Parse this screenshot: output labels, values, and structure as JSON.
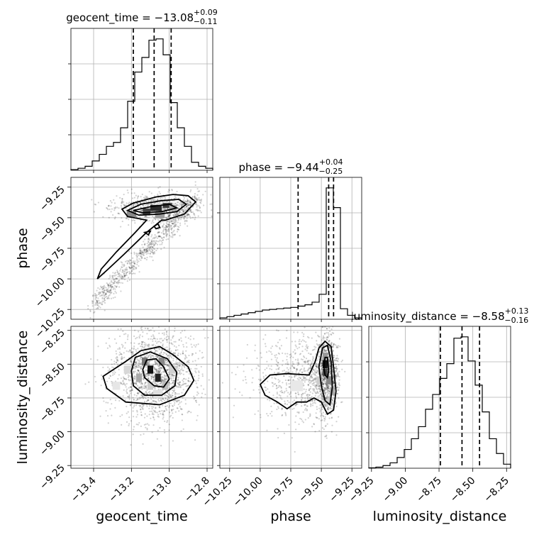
{
  "chart_data": {
    "type": "corner",
    "parameters": [
      "geocent_time",
      "phase",
      "luminosity_distance"
    ],
    "axis_labels": {
      "geocent_time": "geocent_time",
      "phase": "phase",
      "luminosity_distance": "luminosity_distance"
    },
    "ticks": {
      "geocent_time": [
        "−13.4",
        "−13.2",
        "−13.0",
        "−12.8"
      ],
      "phase": [
        "−10.25",
        "−10.00",
        "−9.75",
        "−9.50",
        "−9.25"
      ],
      "luminosity_distance": [
        "−9.25",
        "−9.00",
        "−8.75",
        "−8.50",
        "−8.25"
      ]
    },
    "ranges": {
      "geocent_time": [
        -13.52,
        -12.77
      ],
      "phase": [
        -10.33,
        -9.17
      ],
      "luminosity_distance": [
        -9.27,
        -8.22
      ]
    },
    "titles": {
      "geocent_time": {
        "prefix": "geocent_time = −13.08",
        "sup": "+0.09",
        "sub": "−0.11"
      },
      "phase": {
        "prefix": "phase = −9.44",
        "sup": "+0.04",
        "sub": "−0.25"
      },
      "luminosity_distance": {
        "prefix": "luminosity_distance = −8.58",
        "sup": "+0.13",
        "sub": "−0.16"
      }
    },
    "quantiles": {
      "geocent_time": [
        -13.19,
        -13.08,
        -12.99
      ],
      "phase": [
        -9.69,
        -9.44,
        -9.4
      ],
      "luminosity_distance": [
        -8.74,
        -8.58,
        -8.45
      ]
    },
    "histograms": {
      "geocent_time": {
        "edges": [
          -13.52,
          -13.4825,
          -13.445,
          -13.4075,
          -13.37,
          -13.3325,
          -13.295,
          -13.2575,
          -13.22,
          -13.1825,
          -13.145,
          -13.1075,
          -13.07,
          -13.0325,
          -12.995,
          -12.9575,
          -12.92,
          -12.8825,
          -12.845,
          -12.8075,
          -12.77
        ],
        "counts": [
          0.5,
          1.5,
          3,
          7,
          12,
          18,
          21,
          32,
          52,
          74,
          85,
          98,
          99,
          87,
          51,
          32,
          18,
          6,
          3,
          1.5
        ]
      },
      "phase": {
        "edges": [
          -10.33,
          -10.272,
          -10.214,
          -10.156,
          -10.098,
          -10.04,
          -9.982,
          -9.924,
          -9.866,
          -9.808,
          -9.75,
          -9.692,
          -9.634,
          -9.576,
          -9.518,
          -9.46,
          -9.402,
          -9.344,
          -9.286,
          -9.228,
          -9.17
        ],
        "counts": [
          1,
          2,
          3,
          4,
          5,
          6,
          7,
          7.5,
          8,
          8.5,
          9,
          10,
          11,
          13,
          19,
          100,
          85,
          8,
          3,
          1
        ]
      },
      "luminosity_distance": {
        "edges": [
          -9.27,
          -9.2175,
          -9.165,
          -9.1125,
          -9.06,
          -9.0075,
          -8.955,
          -8.9025,
          -8.85,
          -8.7975,
          -8.745,
          -8.6925,
          -8.64,
          -8.5875,
          -8.535,
          -8.4825,
          -8.43,
          -8.3775,
          -8.325,
          -8.2725,
          -8.22
        ],
        "counts": [
          0.3,
          0.8,
          2,
          4,
          8,
          14,
          22,
          31,
          44,
          55,
          67,
          78,
          97,
          98,
          80,
          62,
          42,
          22,
          11,
          3
        ]
      }
    },
    "colors": {
      "line": "#000000",
      "grid": "#b0b0b0",
      "points": "#000000"
    }
  }
}
